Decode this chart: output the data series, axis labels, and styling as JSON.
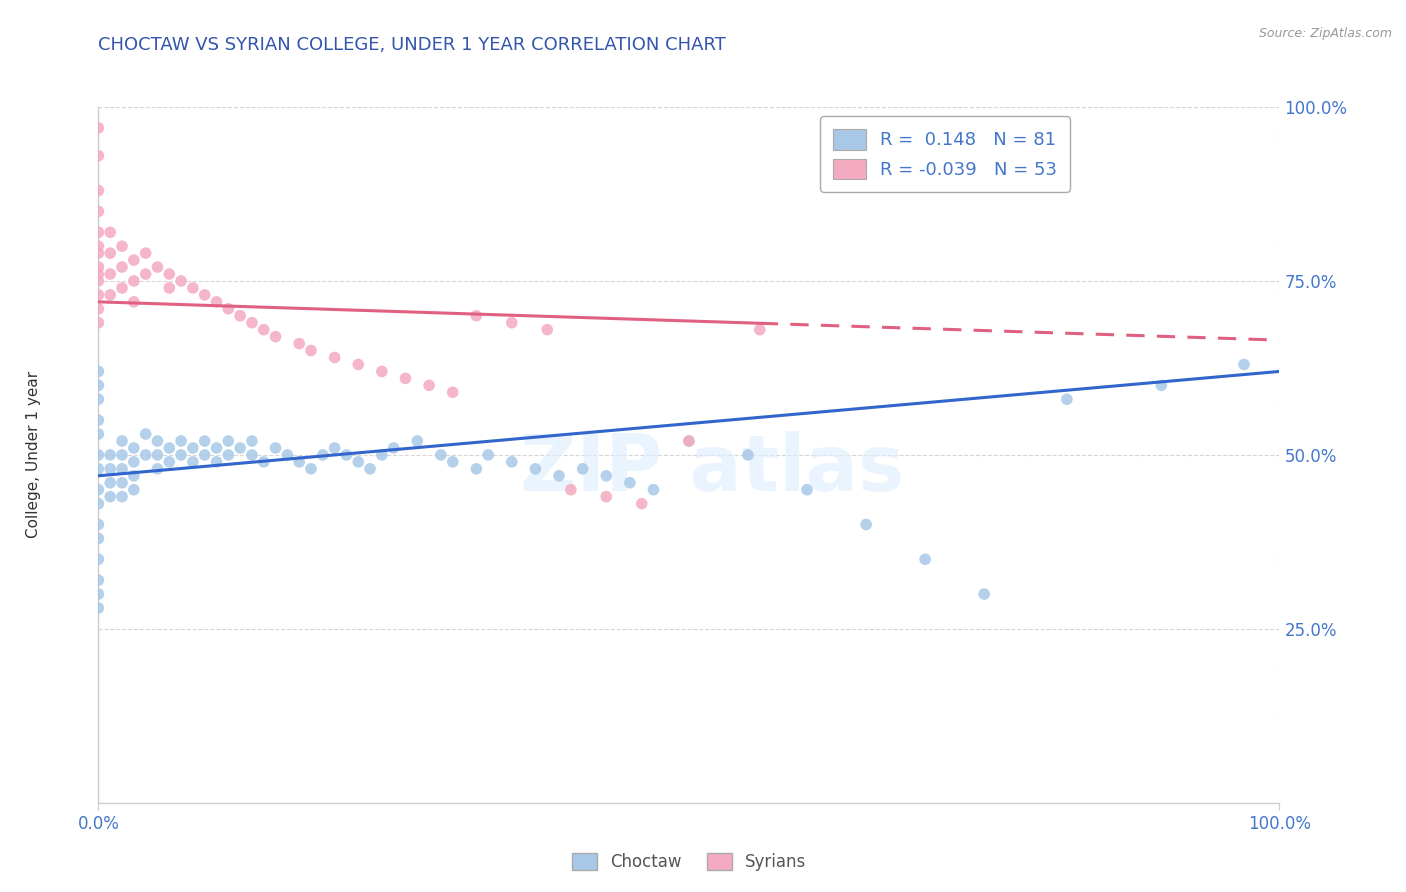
{
  "title": "CHOCTAW VS SYRIAN COLLEGE, UNDER 1 YEAR CORRELATION CHART",
  "source_text": "Source: ZipAtlas.com",
  "ylabel": "College, Under 1 year",
  "xlim": [
    0.0,
    1.0
  ],
  "ylim": [
    0.0,
    1.0
  ],
  "choctaw_R": 0.148,
  "choctaw_N": 81,
  "syrian_R": -0.039,
  "syrian_N": 53,
  "choctaw_color": "#a8c8e8",
  "syrian_color": "#f4aac0",
  "choctaw_line_color": "#3366cc",
  "syrian_line_color": "#e06080",
  "title_color": "#3355aa",
  "grid_color": "#cccccc",
  "tick_color": "#4477cc",
  "choctaw_line_y0": 0.47,
  "choctaw_line_y1": 0.62,
  "syrian_line_y0": 0.72,
  "syrian_line_y1": 0.665,
  "choctaw_x": [
    0.0,
    0.0,
    0.0,
    0.0,
    0.0,
    0.0,
    0.0,
    0.0,
    0.0,
    0.0,
    0.0,
    0.0,
    0.0,
    0.0,
    0.0,
    0.01,
    0.01,
    0.01,
    0.01,
    0.02,
    0.02,
    0.02,
    0.02,
    0.02,
    0.03,
    0.03,
    0.03,
    0.03,
    0.04,
    0.04,
    0.05,
    0.05,
    0.05,
    0.06,
    0.06,
    0.07,
    0.07,
    0.08,
    0.08,
    0.09,
    0.09,
    0.1,
    0.1,
    0.11,
    0.11,
    0.12,
    0.13,
    0.13,
    0.14,
    0.15,
    0.16,
    0.17,
    0.18,
    0.19,
    0.2,
    0.21,
    0.22,
    0.23,
    0.24,
    0.25,
    0.27,
    0.29,
    0.3,
    0.32,
    0.33,
    0.35,
    0.37,
    0.39,
    0.41,
    0.43,
    0.45,
    0.47,
    0.5,
    0.55,
    0.6,
    0.65,
    0.7,
    0.75,
    0.82,
    0.9,
    0.97
  ],
  "choctaw_y": [
    0.5,
    0.53,
    0.48,
    0.45,
    0.43,
    0.4,
    0.38,
    0.35,
    0.32,
    0.3,
    0.28,
    0.55,
    0.58,
    0.6,
    0.62,
    0.5,
    0.48,
    0.46,
    0.44,
    0.52,
    0.5,
    0.48,
    0.46,
    0.44,
    0.51,
    0.49,
    0.47,
    0.45,
    0.53,
    0.5,
    0.52,
    0.5,
    0.48,
    0.51,
    0.49,
    0.52,
    0.5,
    0.51,
    0.49,
    0.52,
    0.5,
    0.51,
    0.49,
    0.52,
    0.5,
    0.51,
    0.52,
    0.5,
    0.49,
    0.51,
    0.5,
    0.49,
    0.48,
    0.5,
    0.51,
    0.5,
    0.49,
    0.48,
    0.5,
    0.51,
    0.52,
    0.5,
    0.49,
    0.48,
    0.5,
    0.49,
    0.48,
    0.47,
    0.48,
    0.47,
    0.46,
    0.45,
    0.52,
    0.5,
    0.45,
    0.4,
    0.35,
    0.3,
    0.58,
    0.6,
    0.63
  ],
  "syrian_x": [
    0.0,
    0.0,
    0.0,
    0.0,
    0.0,
    0.0,
    0.0,
    0.0,
    0.0,
    0.0,
    0.0,
    0.0,
    0.0,
    0.01,
    0.01,
    0.01,
    0.01,
    0.02,
    0.02,
    0.02,
    0.03,
    0.03,
    0.03,
    0.04,
    0.04,
    0.05,
    0.06,
    0.06,
    0.07,
    0.08,
    0.09,
    0.1,
    0.11,
    0.12,
    0.13,
    0.14,
    0.15,
    0.17,
    0.18,
    0.2,
    0.22,
    0.24,
    0.26,
    0.28,
    0.3,
    0.32,
    0.35,
    0.38,
    0.4,
    0.43,
    0.46,
    0.5,
    0.56
  ],
  "syrian_y": [
    0.97,
    0.93,
    0.88,
    0.85,
    0.82,
    0.79,
    0.77,
    0.75,
    0.73,
    0.71,
    0.69,
    0.8,
    0.76,
    0.82,
    0.79,
    0.76,
    0.73,
    0.8,
    0.77,
    0.74,
    0.78,
    0.75,
    0.72,
    0.79,
    0.76,
    0.77,
    0.76,
    0.74,
    0.75,
    0.74,
    0.73,
    0.72,
    0.71,
    0.7,
    0.69,
    0.68,
    0.67,
    0.66,
    0.65,
    0.64,
    0.63,
    0.62,
    0.61,
    0.6,
    0.59,
    0.7,
    0.69,
    0.68,
    0.45,
    0.44,
    0.43,
    0.52,
    0.68
  ]
}
